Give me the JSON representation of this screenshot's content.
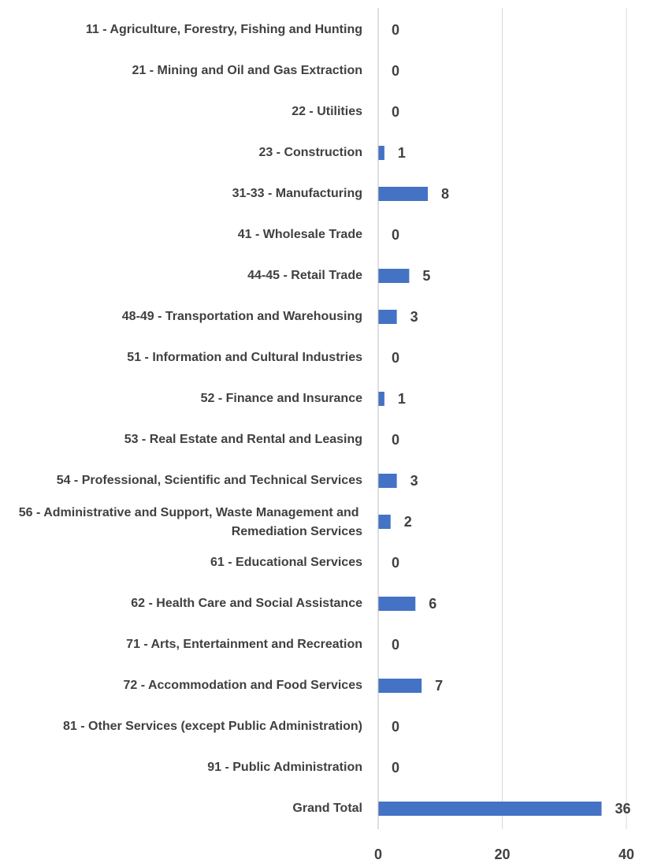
{
  "chart_data": {
    "type": "bar",
    "orientation": "horizontal",
    "categories": [
      "11 - Agriculture, Forestry, Fishing and Hunting",
      "21 - Mining and Oil and Gas Extraction",
      "22 - Utilities",
      "23 - Construction",
      "31-33 - Manufacturing",
      "41 - Wholesale Trade",
      "44-45 - Retail Trade",
      "48-49 - Transportation and Warehousing",
      "51 - Information and Cultural Industries",
      "52 - Finance and Insurance",
      "53 - Real Estate and Rental and Leasing",
      "54 - Professional, Scientific and Technical Services",
      "56 - Administrative and Support, Waste Management and Remediation Services",
      "61 - Educational Services",
      "62 - Health Care and Social Assistance",
      "71 - Arts, Entertainment and Recreation",
      "72 - Accommodation and Food Services",
      "81 - Other Services (except Public Administration)",
      "91 - Public Administration",
      "Grand Total"
    ],
    "values": [
      0,
      0,
      0,
      1,
      8,
      0,
      5,
      3,
      0,
      1,
      0,
      3,
      2,
      0,
      6,
      0,
      7,
      0,
      0,
      36
    ],
    "color": "#4472c4",
    "xlim": [
      0,
      40
    ],
    "xticks": [
      0,
      20,
      40
    ],
    "grid": true
  }
}
